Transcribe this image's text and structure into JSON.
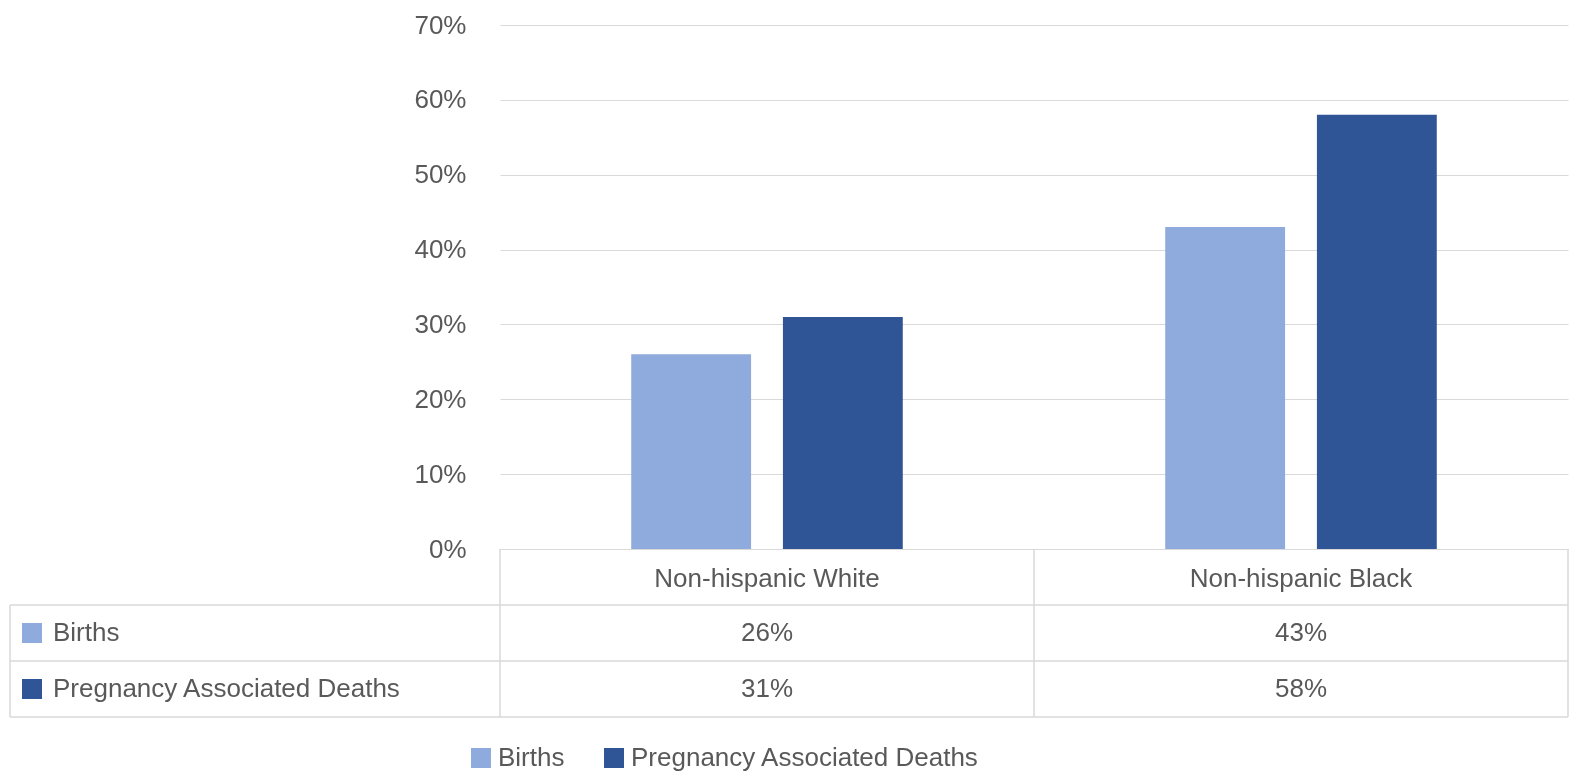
{
  "chart_data": {
    "type": "bar",
    "categories": [
      "Non-hispanic White",
      "Non-hispanic Black"
    ],
    "series": [
      {
        "name": "Births",
        "color": "#8faadc",
        "values": [
          26,
          43
        ],
        "value_labels": [
          "26%",
          "43%"
        ]
      },
      {
        "name": "Pregnancy Associated Deaths",
        "color": "#2f5597",
        "values": [
          31,
          58
        ],
        "value_labels": [
          "31%",
          "58%"
        ]
      }
    ],
    "ylim": [
      0,
      70
    ],
    "yticks": [
      {
        "value": 0,
        "label": "0%"
      },
      {
        "value": 10,
        "label": "10%"
      },
      {
        "value": 20,
        "label": "20%"
      },
      {
        "value": 30,
        "label": "30%"
      },
      {
        "value": 40,
        "label": "40%"
      },
      {
        "value": 50,
        "label": "50%"
      },
      {
        "value": 60,
        "label": "60%"
      },
      {
        "value": 70,
        "label": "70%"
      }
    ],
    "grid": "y",
    "legend": "bottom"
  }
}
